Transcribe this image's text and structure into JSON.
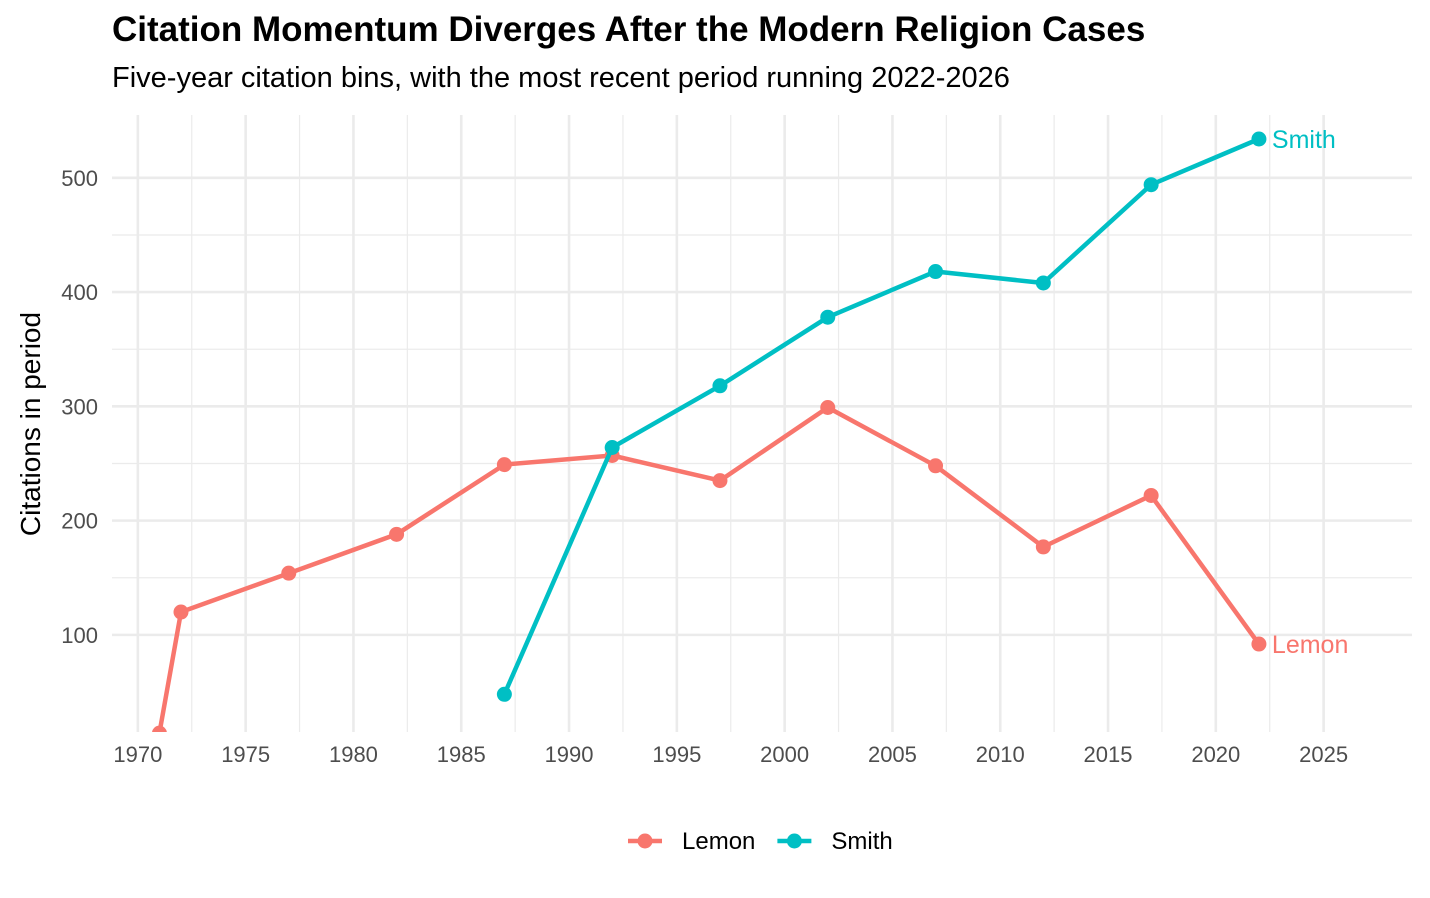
{
  "chart_data": {
    "type": "line",
    "title": "Citation Momentum Diverges After the Modern Religion Cases",
    "subtitle": "Five-year citation bins, with the most recent period running 2022-2026",
    "xlabel": "",
    "ylabel": "Citations in period",
    "xlim": [
      1968.8,
      2029.1
    ],
    "ylim": [
      15,
      555
    ],
    "x_ticks": [
      1970,
      1975,
      1980,
      1985,
      1990,
      1995,
      2000,
      2005,
      2010,
      2015,
      2020,
      2025
    ],
    "y_ticks": [
      100,
      200,
      300,
      400,
      500
    ],
    "grid": true,
    "legend_position": "bottom",
    "series": [
      {
        "name": "Lemon",
        "color": "#F8766D",
        "x": [
          1971,
          1972,
          1977,
          1982,
          1987,
          1992,
          1997,
          2002,
          2007,
          2012,
          2017,
          2022
        ],
        "values": [
          14,
          120,
          154,
          188,
          249,
          257,
          235,
          299,
          248,
          177,
          222,
          92
        ]
      },
      {
        "name": "Smith",
        "color": "#00BFC4",
        "x": [
          1987,
          1992,
          1997,
          2002,
          2007,
          2012,
          2017,
          2022
        ],
        "values": [
          48,
          264,
          318,
          378,
          418,
          408,
          494,
          534
        ]
      }
    ]
  }
}
